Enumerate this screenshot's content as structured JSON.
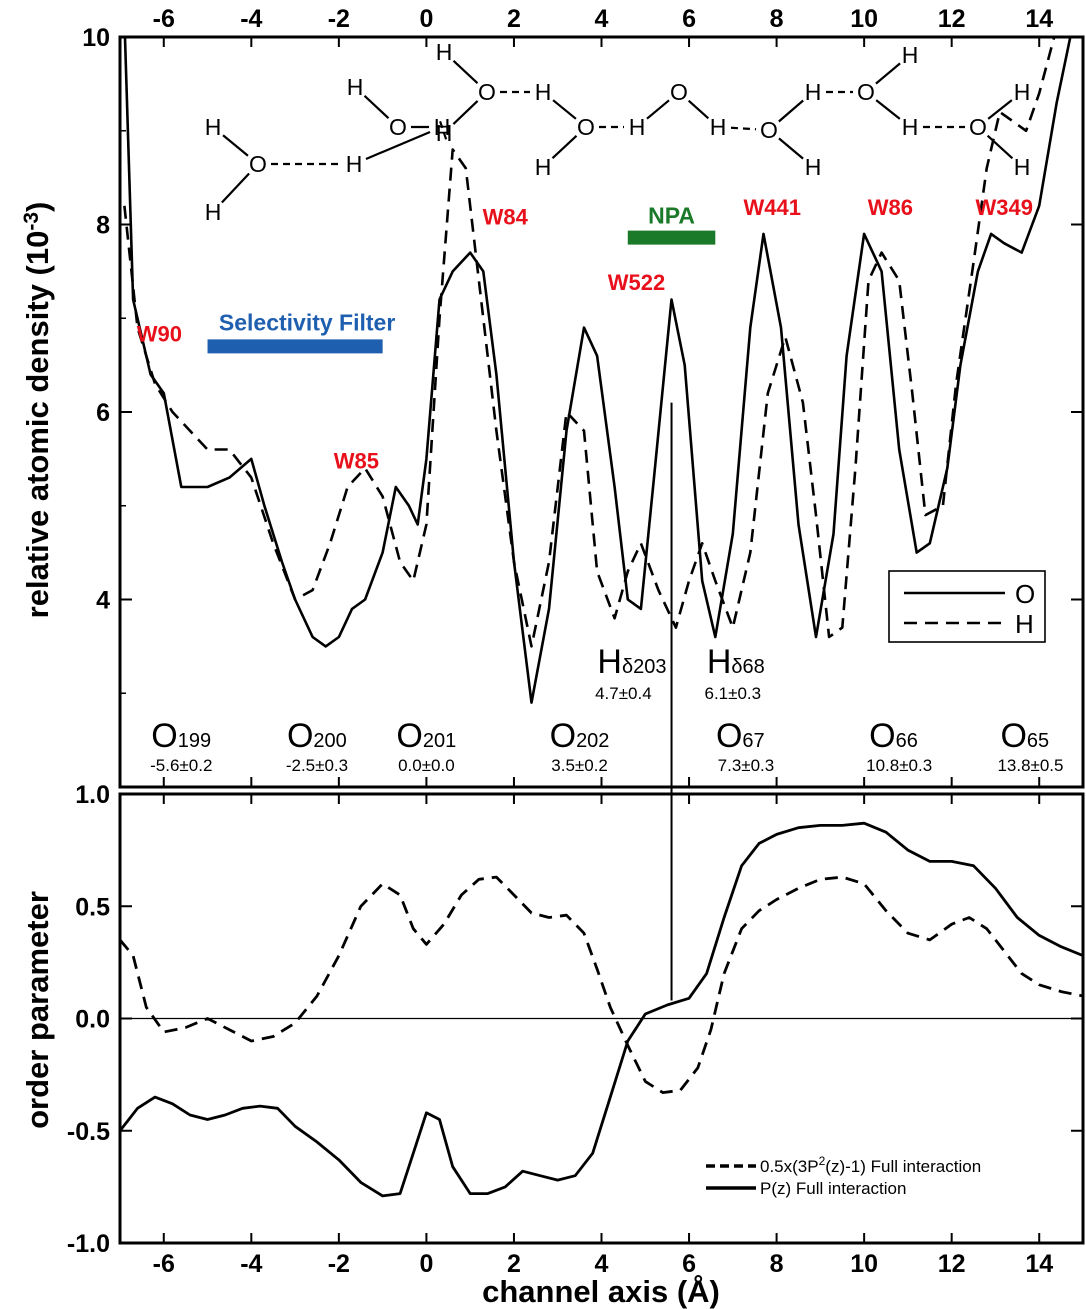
{
  "chart_data": [
    {
      "type": "line",
      "panel": "top",
      "ylabel_main": "relative atomic density (10",
      "ylabel_sup": "-3",
      "ylabel_close": ")",
      "xlim": [
        -7,
        15
      ],
      "ylim": [
        2,
        10
      ],
      "x_ticks": [
        "-6",
        "-4",
        "-2",
        "0",
        "2",
        "4",
        "6",
        "8",
        "10",
        "12",
        "14"
      ],
      "y_ticks": [
        "4",
        "6",
        "8",
        "10"
      ],
      "legend": {
        "placement": "lower-right",
        "entries": [
          "O",
          "H"
        ]
      },
      "series": [
        {
          "name": "O",
          "style": "solid",
          "x": [
            -6.9,
            -6.7,
            -6.3,
            -6.0,
            -5.6,
            -5.0,
            -4.5,
            -4.0,
            -3.7,
            -3.3,
            -3.0,
            -2.6,
            -2.3,
            -2.0,
            -1.7,
            -1.4,
            -1.0,
            -0.7,
            -0.4,
            -0.2,
            0.0,
            0.3,
            0.6,
            1.0,
            1.3,
            1.6,
            2.0,
            2.4,
            2.8,
            3.2,
            3.6,
            3.9,
            4.3,
            4.6,
            4.9,
            5.2,
            5.6,
            5.9,
            6.3,
            6.6,
            7.0,
            7.4,
            7.7,
            8.1,
            8.5,
            8.9,
            9.3,
            9.6,
            10.0,
            10.4,
            10.8,
            11.2,
            11.5,
            11.9,
            12.2,
            12.6,
            12.9,
            13.2,
            13.6,
            14.0,
            14.4,
            14.8
          ],
          "y": [
            10.2,
            7.2,
            6.4,
            6.2,
            5.2,
            5.2,
            5.3,
            5.5,
            5.0,
            4.4,
            4.0,
            3.6,
            3.5,
            3.6,
            3.9,
            4.0,
            4.5,
            5.2,
            5.0,
            4.8,
            5.5,
            7.2,
            7.5,
            7.7,
            7.5,
            6.4,
            4.4,
            2.9,
            3.9,
            5.8,
            6.9,
            6.6,
            5.2,
            4.0,
            3.9,
            5.3,
            7.2,
            6.5,
            4.2,
            3.6,
            4.7,
            6.9,
            7.9,
            6.9,
            4.8,
            3.6,
            4.7,
            6.6,
            7.9,
            7.5,
            5.6,
            4.5,
            4.6,
            5.4,
            6.5,
            7.5,
            7.9,
            7.8,
            7.7,
            8.2,
            9.3,
            10.2
          ]
        },
        {
          "name": "H",
          "style": "dashed",
          "x": [
            -6.9,
            -6.6,
            -6.2,
            -5.8,
            -5.4,
            -5.0,
            -4.5,
            -4.0,
            -3.5,
            -3.0,
            -2.6,
            -2.2,
            -1.8,
            -1.4,
            -1.0,
            -0.6,
            -0.3,
            0.0,
            0.3,
            0.6,
            0.9,
            1.2,
            1.6,
            2.0,
            2.4,
            2.8,
            3.2,
            3.6,
            3.9,
            4.3,
            4.6,
            4.9,
            5.3,
            5.7,
            6.0,
            6.3,
            6.6,
            7.0,
            7.4,
            7.8,
            8.2,
            8.6,
            8.9,
            9.2,
            9.5,
            9.8,
            10.1,
            10.4,
            10.8,
            11.1,
            11.4,
            11.8,
            12.1,
            12.5,
            12.8,
            13.1,
            13.4,
            13.7,
            14.0,
            14.4,
            14.8
          ],
          "y": [
            8.2,
            6.9,
            6.3,
            6.0,
            5.8,
            5.6,
            5.6,
            5.3,
            4.6,
            4.0,
            4.1,
            4.6,
            5.2,
            5.4,
            5.1,
            4.4,
            4.2,
            4.8,
            7.0,
            8.8,
            8.6,
            7.4,
            5.8,
            4.4,
            3.5,
            4.4,
            6.0,
            5.8,
            4.3,
            3.8,
            4.3,
            4.6,
            4.1,
            3.7,
            4.2,
            4.6,
            4.2,
            3.7,
            4.5,
            6.2,
            6.8,
            6.1,
            4.9,
            3.6,
            3.7,
            5.4,
            7.4,
            7.7,
            7.4,
            6.2,
            4.9,
            5.0,
            6.3,
            7.6,
            8.6,
            9.2,
            9.1,
            9.0,
            9.4,
            10.1,
            10.3
          ]
        }
      ],
      "vertical_marker_x": 5.6,
      "annotations": {
        "waters": [
          {
            "label": "W90",
            "x": -6.1,
            "y": 6.75
          },
          {
            "label": "W85",
            "x": -1.6,
            "y": 5.4
          },
          {
            "label": "W84",
            "x": 1.8,
            "y": 8.0
          },
          {
            "label": "W522",
            "x": 4.8,
            "y": 7.3
          },
          {
            "label": "W441",
            "x": 7.9,
            "y": 8.1
          },
          {
            "label": "W86",
            "x": 10.6,
            "y": 8.1
          },
          {
            "label": "W349",
            "x": 13.2,
            "y": 8.1
          }
        ],
        "bars": [
          {
            "label": "Selectivity Filter",
            "x0": -5.0,
            "x1": -1.0,
            "y": 6.7,
            "color": "#1f5fb0"
          },
          {
            "label": "NPA",
            "x0": 4.6,
            "x1": 6.6,
            "y": 7.86,
            "color": "#1b7a2a"
          }
        ],
        "atoms": [
          {
            "name": "O",
            "sub": "199",
            "value": "-5.6±0.2",
            "x": -5.6
          },
          {
            "name": "O",
            "sub": "200",
            "value": "-2.5±0.3",
            "x": -2.5
          },
          {
            "name": "O",
            "sub": "201",
            "value": "0.0±0.0",
            "x": 0.0
          },
          {
            "name": "O",
            "sub": "202",
            "value": "3.5±0.2",
            "x": 3.5
          },
          {
            "name": "O",
            "sub": "67",
            "value": "7.3±0.3",
            "x": 7.3
          },
          {
            "name": "O",
            "sub": "66",
            "value": "10.8±0.3",
            "x": 10.8
          },
          {
            "name": "O",
            "sub": "65",
            "value": "13.8±0.5",
            "x": 13.8
          },
          {
            "name": "H",
            "sub": "δ203",
            "value": "4.7±0.4",
            "x": 4.5,
            "row": "upper"
          },
          {
            "name": "H",
            "sub": "δ68",
            "value": "6.1±0.3",
            "x": 7.0,
            "row": "upper"
          }
        ]
      },
      "molecule": {
        "atom_O": "O",
        "atom_H": "H"
      }
    },
    {
      "type": "line",
      "panel": "bottom",
      "xlabel": "channel axis (Å)",
      "ylabel": "order parameter",
      "xlim": [
        -7,
        15
      ],
      "ylim": [
        -1.0,
        1.0
      ],
      "x_ticks": [
        "-6",
        "-4",
        "-2",
        "0",
        "2",
        "4",
        "6",
        "8",
        "10",
        "12",
        "14"
      ],
      "y_ticks": [
        "-1.0",
        "-0.5",
        "0.0",
        "0.5",
        "1.0"
      ],
      "zero_line": 0,
      "legend": {
        "placement": "lower-right"
      },
      "series": [
        {
          "name": "0.5x(3P²(z)-1) Full interaction",
          "name_parts": [
            "0.5x(3P",
            "2",
            "(z)-1) Full interaction"
          ],
          "style": "dashed",
          "x": [
            -7.0,
            -6.7,
            -6.4,
            -6.0,
            -5.5,
            -5.0,
            -4.5,
            -4.0,
            -3.5,
            -3.0,
            -2.5,
            -2.0,
            -1.5,
            -1.0,
            -0.6,
            -0.3,
            0.0,
            0.4,
            0.8,
            1.2,
            1.6,
            2.0,
            2.4,
            2.8,
            3.2,
            3.6,
            3.9,
            4.2,
            4.6,
            5.0,
            5.4,
            5.8,
            6.2,
            6.5,
            6.8,
            7.2,
            7.6,
            8.0,
            8.5,
            9.0,
            9.5,
            10.0,
            10.5,
            11.0,
            11.5,
            12.0,
            12.4,
            12.8,
            13.2,
            13.6,
            14.0,
            14.5,
            15.0
          ],
          "y": [
            0.35,
            0.28,
            0.05,
            -0.06,
            -0.04,
            0.0,
            -0.05,
            -0.1,
            -0.08,
            -0.02,
            0.1,
            0.28,
            0.5,
            0.6,
            0.55,
            0.4,
            0.33,
            0.42,
            0.55,
            0.62,
            0.63,
            0.55,
            0.47,
            0.45,
            0.46,
            0.38,
            0.22,
            0.05,
            -0.12,
            -0.28,
            -0.33,
            -0.32,
            -0.22,
            -0.05,
            0.2,
            0.4,
            0.48,
            0.53,
            0.58,
            0.62,
            0.63,
            0.6,
            0.48,
            0.38,
            0.35,
            0.42,
            0.45,
            0.4,
            0.3,
            0.2,
            0.15,
            0.12,
            0.1
          ]
        },
        {
          "name": "P(z) Full interaction",
          "style": "solid",
          "x": [
            -7.0,
            -6.6,
            -6.2,
            -5.8,
            -5.4,
            -5.0,
            -4.6,
            -4.2,
            -3.8,
            -3.4,
            -3.0,
            -2.5,
            -2.0,
            -1.5,
            -1.0,
            -0.6,
            -0.3,
            0.0,
            0.3,
            0.6,
            1.0,
            1.4,
            1.8,
            2.2,
            2.6,
            3.0,
            3.4,
            3.8,
            4.2,
            4.6,
            5.0,
            5.5,
            6.0,
            6.4,
            6.8,
            7.2,
            7.6,
            8.0,
            8.5,
            9.0,
            9.5,
            10.0,
            10.5,
            11.0,
            11.5,
            12.0,
            12.5,
            13.0,
            13.5,
            14.0,
            14.5,
            15.0
          ],
          "y": [
            -0.5,
            -0.4,
            -0.35,
            -0.38,
            -0.43,
            -0.45,
            -0.43,
            -0.4,
            -0.39,
            -0.4,
            -0.48,
            -0.55,
            -0.63,
            -0.73,
            -0.79,
            -0.78,
            -0.6,
            -0.42,
            -0.45,
            -0.66,
            -0.78,
            -0.78,
            -0.75,
            -0.68,
            -0.7,
            -0.72,
            -0.7,
            -0.6,
            -0.35,
            -0.1,
            0.02,
            0.06,
            0.09,
            0.2,
            0.45,
            0.68,
            0.78,
            0.82,
            0.85,
            0.86,
            0.86,
            0.87,
            0.83,
            0.75,
            0.7,
            0.7,
            0.68,
            0.58,
            0.45,
            0.37,
            0.32,
            0.28
          ]
        }
      ]
    }
  ]
}
